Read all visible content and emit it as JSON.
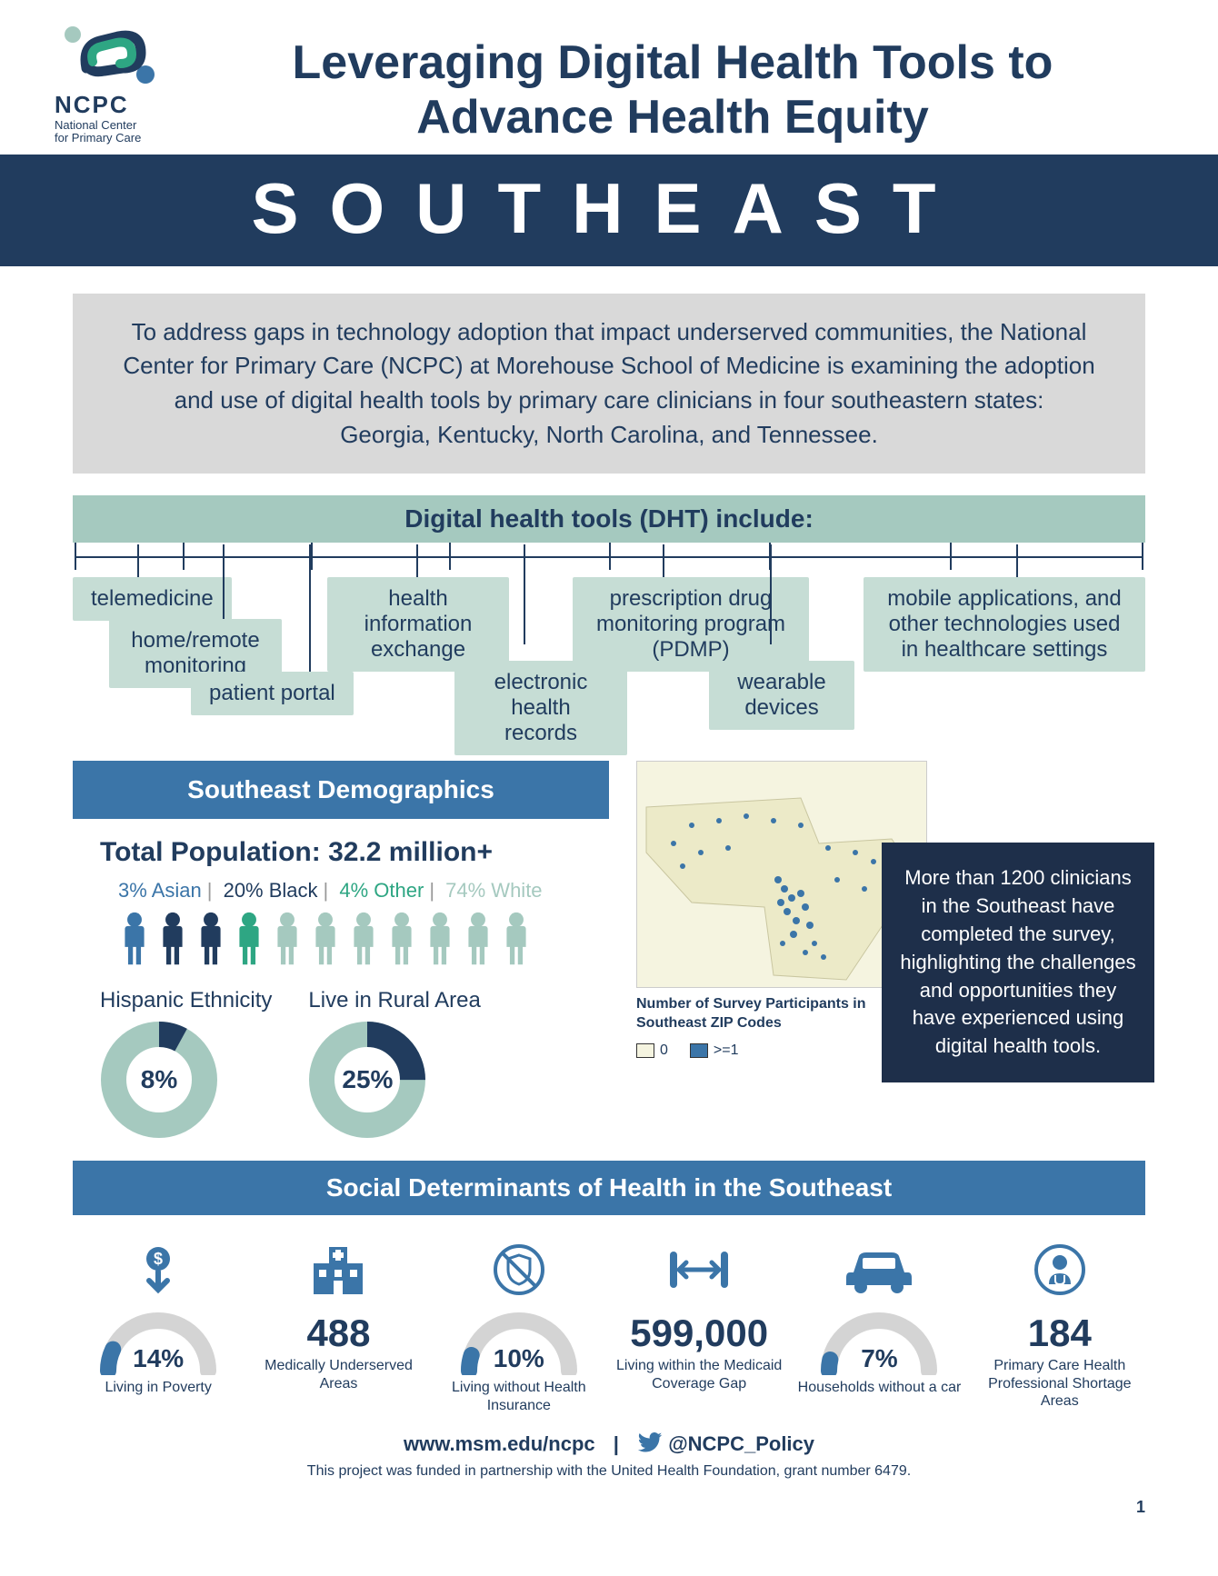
{
  "logo": {
    "org_abbr": "NCPC",
    "org_name_line1": "National Center",
    "org_name_line2": "for Primary Care"
  },
  "title_line1": "Leveraging Digital Health Tools to",
  "title_line2": "Advance Health Equity",
  "banner": "SOUTHEAST",
  "intro": "To address gaps in technology adoption that impact underserved communities, the National Center for Primary Care (NCPC) at Morehouse School of Medicine is examining the adoption and use of digital health tools by primary care clinicians in four southeastern states:",
  "intro_states": "Georgia, Kentucky, North Carolina, and Tennessee.",
  "dht": {
    "header": "Digital health tools (DHT) include:",
    "items": [
      "telemedicine",
      "home/remote monitoring",
      "patient portal",
      "health information exchange",
      "electronic health records",
      "prescription drug monitoring program (PDMP)",
      "wearable devices",
      "mobile applications, and other technologies used in healthcare settings"
    ]
  },
  "demographics": {
    "header": "Southeast Demographics",
    "total_pop": "Total Population: 32.2 million+",
    "ethnicity": {
      "asian": {
        "label": "3% Asian",
        "color": "#3b75a8"
      },
      "black": {
        "label": "20% Black",
        "color": "#213c5e"
      },
      "other": {
        "label": "4% Other",
        "color": "#2ea683"
      },
      "white": {
        "label": "74% White",
        "color": "#a5c9bf"
      }
    },
    "people": [
      {
        "color": "#3b75a8"
      },
      {
        "color": "#213c5e"
      },
      {
        "color": "#213c5e"
      },
      {
        "color": "#2ea683"
      },
      {
        "color": "#a5c9bf"
      },
      {
        "color": "#a5c9bf"
      },
      {
        "color": "#a5c9bf"
      },
      {
        "color": "#a5c9bf"
      },
      {
        "color": "#a5c9bf"
      },
      {
        "color": "#a5c9bf"
      },
      {
        "color": "#a5c9bf"
      }
    ],
    "donuts": [
      {
        "label": "Hispanic Ethnicity",
        "pct": 8,
        "pct_label": "8%",
        "fill": "#a5c9bf",
        "accent": "#213c5e"
      },
      {
        "label": "Live in Rural Area",
        "pct": 25,
        "pct_label": "25%",
        "fill": "#a5c9bf",
        "accent": "#213c5e"
      }
    ]
  },
  "map": {
    "caption": "Number of Survey Participants in Southeast ZIP Codes",
    "legend": [
      {
        "label": "0",
        "color": "#f5f4e0"
      },
      {
        "label": ">=1",
        "color": "#3b75a8"
      }
    ]
  },
  "callout": "More than 1200 clinicians in the Southeast have completed the survey, highlighting the challenges and opportunities they have experienced using digital health tools.",
  "sdoh": {
    "header": "Social Determinants of Health in the Southeast",
    "items": [
      {
        "type": "gauge",
        "pct": 14,
        "pct_label": "14%",
        "label": "Living in Poverty",
        "icon": "dollar-down"
      },
      {
        "type": "big",
        "big": "488",
        "label": "Medically Underserved Areas",
        "icon": "hospital"
      },
      {
        "type": "gauge",
        "pct": 10,
        "pct_label": "10%",
        "label": "Living without Health Insurance",
        "icon": "no-shield"
      },
      {
        "type": "big",
        "big": "599,000",
        "label": "Living within the Medicaid Coverage Gap",
        "icon": "gap"
      },
      {
        "type": "gauge",
        "pct": 7,
        "pct_label": "7%",
        "label": "Households without a car",
        "icon": "car"
      },
      {
        "type": "big",
        "big": "184",
        "label": "Primary Care Health Professional Shortage Areas",
        "icon": "doctor"
      }
    ],
    "gauge_track_color": "#d4d4d4",
    "gauge_fill_color": "#3b75a8"
  },
  "footer": {
    "url": "www.msm.edu/ncpc",
    "handle": "@NCPC_Policy",
    "note": "This project was funded in partnership with the United Health Foundation, grant number 6479.",
    "page": "1"
  },
  "colors": {
    "navy": "#213c5e",
    "blue": "#3b75a8",
    "teal": "#2ea683",
    "mint": "#a5c9bf",
    "mint_light": "#c6ddd5",
    "grey": "#d9d9d9"
  }
}
